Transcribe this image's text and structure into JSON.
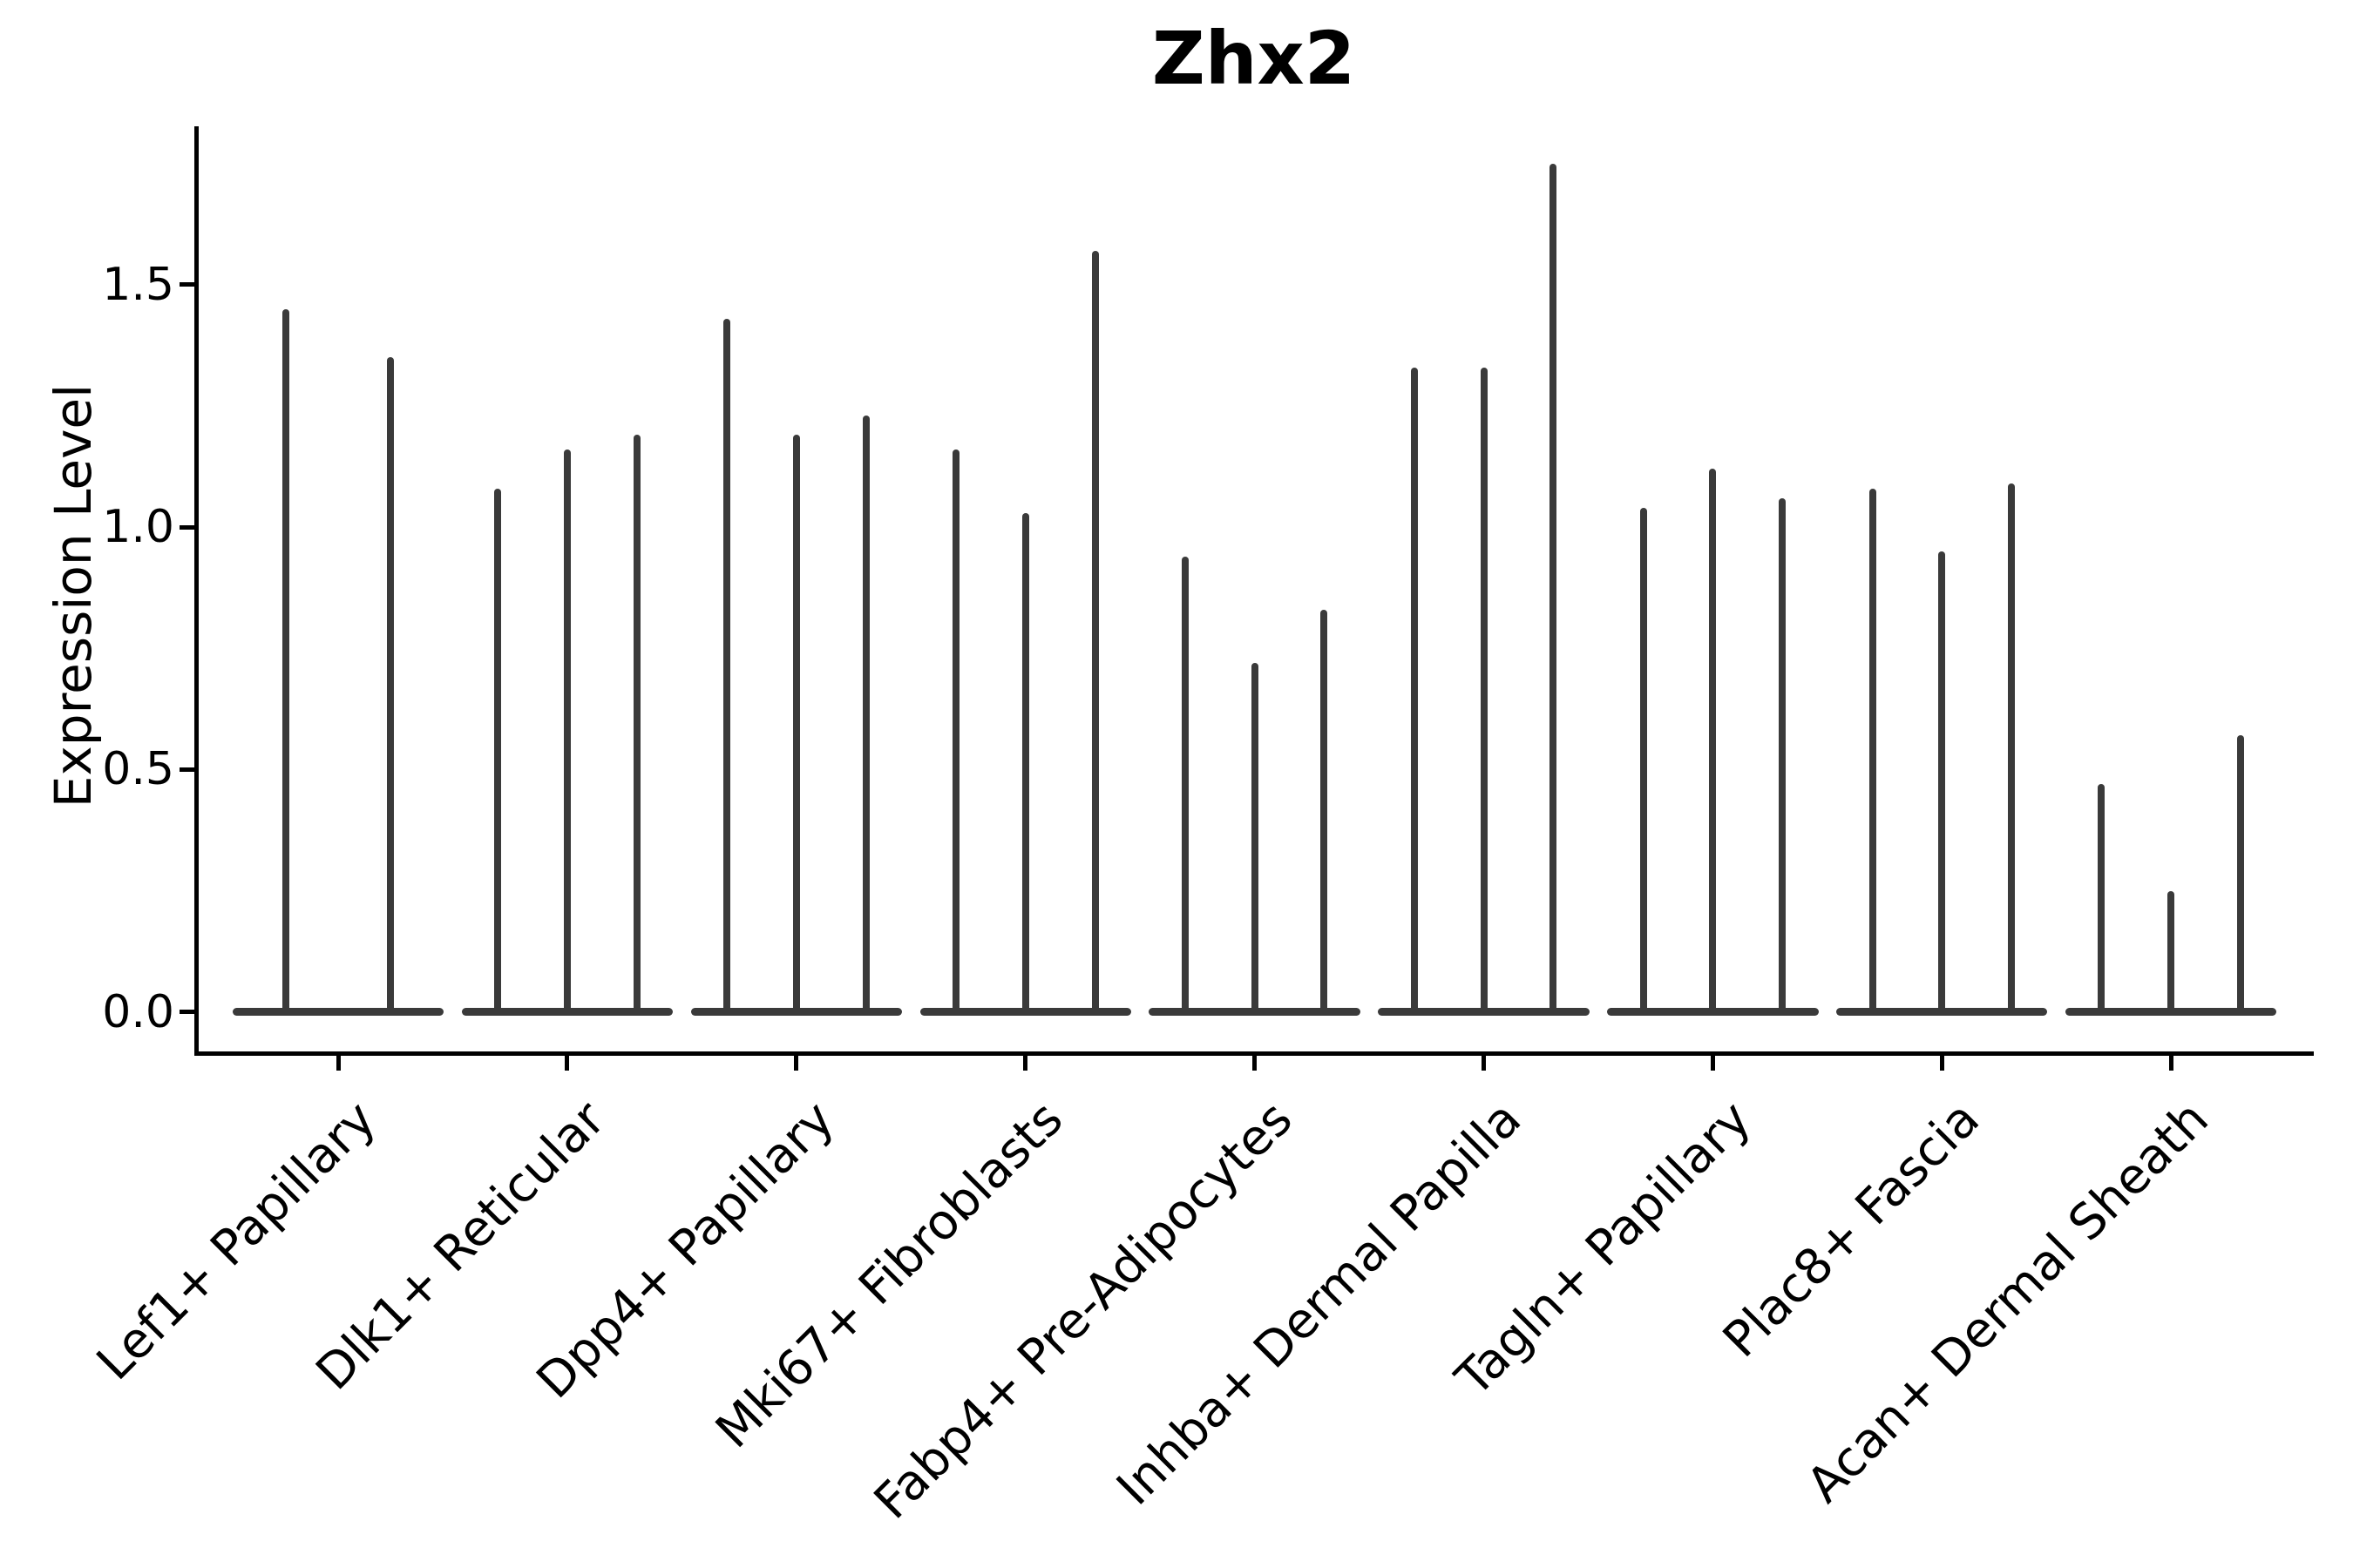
{
  "header": {
    "title": "Zhx2"
  },
  "axes": {
    "ylabel": "Expression Level",
    "ytick_labels": [
      "0.0",
      "0.5",
      "1.0",
      "1.5"
    ]
  },
  "chart_data": {
    "type": "violin",
    "title": "Zhx2",
    "xlabel": "",
    "ylabel": "Expression Level",
    "ylim": [
      -0.09,
      1.83
    ],
    "yticks": [
      0.0,
      0.5,
      1.0,
      1.5
    ],
    "grid": false,
    "legend": "none",
    "xtick_rotation_deg": 45,
    "description": "Stacked-style violin plot; each category holds 2-3 extremely thin violins (wide flat base at expression 0 with a narrow spike up to the listed maximum expression value).",
    "categories": [
      "Lef1+ Papillary",
      "Dlk1+ Reticular",
      "Dpp4+ Papillary",
      "Mki67+ Fibroblasts",
      "Fabp4+ Pre-Adipocytes",
      "Inhba+ Dermal Papilla",
      "Tagln+ Papillary",
      "Plac8+ Fascia",
      "Acan+ Dermal Sheath"
    ],
    "violins": [
      {
        "category": "Lef1+ Papillary",
        "spike_maxima": [
          1.45,
          1.35
        ]
      },
      {
        "category": "Dlk1+ Reticular",
        "spike_maxima": [
          1.08,
          1.16,
          1.19
        ]
      },
      {
        "category": "Dpp4+ Papillary",
        "spike_maxima": [
          1.43,
          1.19,
          1.23
        ]
      },
      {
        "category": "Mki67+ Fibroblasts",
        "spike_maxima": [
          1.16,
          1.03,
          1.57
        ]
      },
      {
        "category": "Fabp4+ Pre-Adipocytes",
        "spike_maxima": [
          0.94,
          0.72,
          0.83
        ]
      },
      {
        "category": "Inhba+ Dermal Papilla",
        "spike_maxima": [
          1.33,
          1.33,
          1.75
        ]
      },
      {
        "category": "Tagln+ Papillary",
        "spike_maxima": [
          1.04,
          1.12,
          1.06
        ]
      },
      {
        "category": "Plac8+ Fascia",
        "spike_maxima": [
          1.08,
          0.95,
          1.09
        ]
      },
      {
        "category": "Acan+ Dermal Sheath",
        "spike_maxima": [
          0.47,
          0.25,
          0.57
        ]
      }
    ],
    "colors": {
      "violin": "#3a3a3a",
      "axis": "#000000",
      "background": "#ffffff"
    }
  }
}
